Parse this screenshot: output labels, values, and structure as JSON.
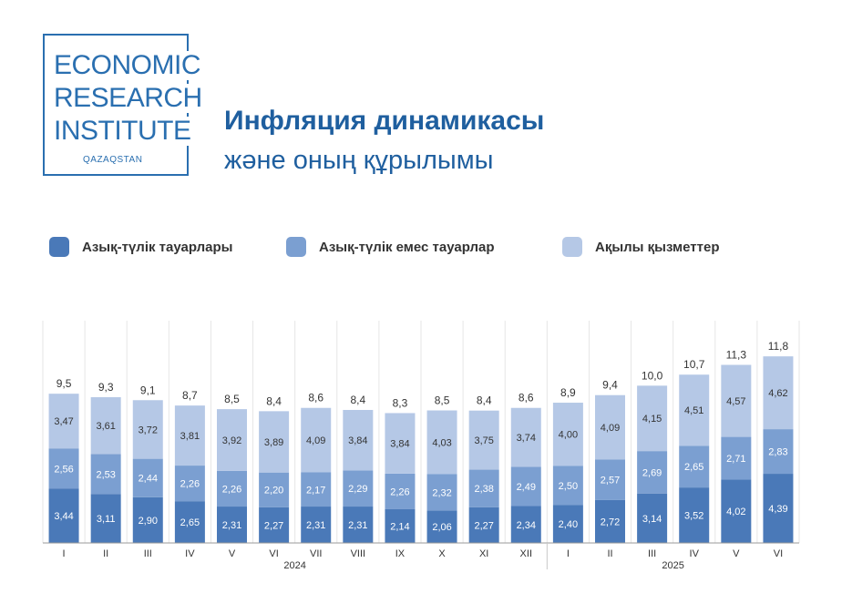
{
  "logo": {
    "lines": [
      "ECONOMIC",
      "RESEARCH",
      "INSTITUTE"
    ],
    "sub": "QAZAQSTAN"
  },
  "header": {
    "title": "Инфляция динамикасы",
    "subtitle": "және оның құрылымы"
  },
  "colors": {
    "brand": "#2a6fb0",
    "food": "#4a79b8",
    "nonfood": "#7b9fd1",
    "services": "#b5c8e6"
  },
  "chart_data": {
    "type": "bar",
    "stacked": true,
    "categories": [
      "I",
      "II",
      "III",
      "IV",
      "V",
      "VI",
      "VII",
      "VIII",
      "IX",
      "X",
      "XI",
      "XII",
      "I",
      "II",
      "III",
      "IV",
      "V",
      "VI"
    ],
    "year_groups": [
      {
        "label": "2024",
        "count": 12
      },
      {
        "label": "2025",
        "count": 6
      }
    ],
    "series": [
      {
        "name": "Азық-түлік тауарлары",
        "values": [
          "3,44",
          "3,11",
          "2,90",
          "2,65",
          "2,31",
          "2,27",
          "2,31",
          "2,31",
          "2,14",
          "2,06",
          "2,27",
          "2,34",
          "2,40",
          "2,72",
          "3,14",
          "3,52",
          "4,02",
          "4,39"
        ]
      },
      {
        "name": "Азық-түлік емес тауарлар",
        "values": [
          "2,56",
          "2,53",
          "2,44",
          "2,26",
          "2,26",
          "2,20",
          "2,17",
          "2,29",
          "2,26",
          "2,32",
          "2,38",
          "2,49",
          "2,50",
          "2,57",
          "2,69",
          "2,65",
          "2,71",
          "2,83"
        ]
      },
      {
        "name": "Ақылы қызметтер",
        "values": [
          "3,47",
          "3,61",
          "3,72",
          "3,81",
          "3,92",
          "3,89",
          "4,09",
          "3,84",
          "3,84",
          "4,03",
          "3,75",
          "3,74",
          "4,00",
          "4,09",
          "4,15",
          "4,51",
          "4,57",
          "4,62"
        ]
      }
    ],
    "totals": [
      "9,5",
      "9,3",
      "9,1",
      "8,7",
      "8,5",
      "8,4",
      "8,6",
      "8,4",
      "8,3",
      "8,5",
      "8,4",
      "8,6",
      "8,9",
      "9,4",
      "10,0",
      "10,7",
      "11,3",
      "11,8"
    ],
    "legend_position": "top"
  }
}
